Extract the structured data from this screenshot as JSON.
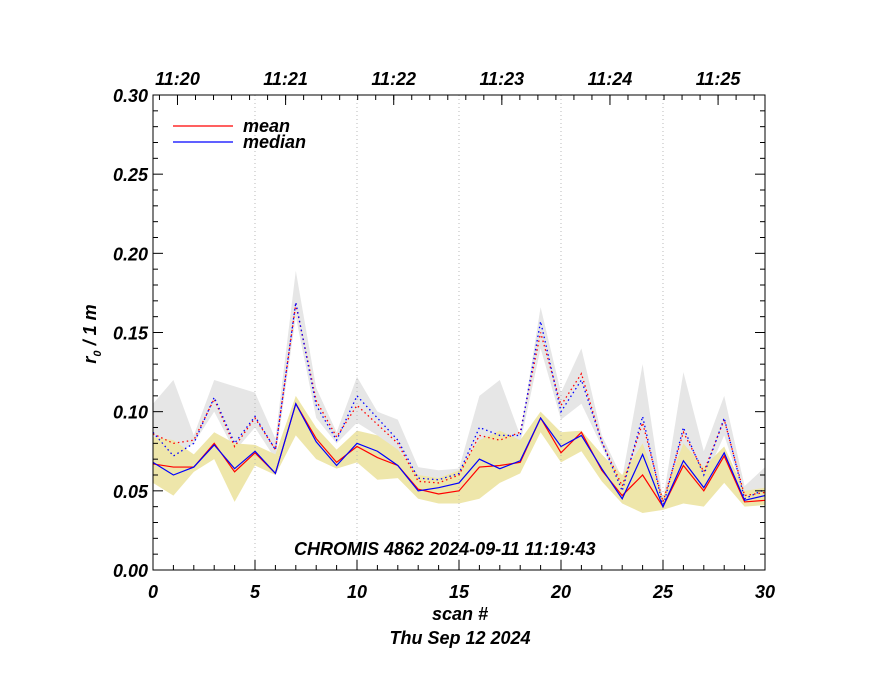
{
  "chart_data": {
    "type": "line",
    "xlabel": "scan #",
    "date_label": "Thu Sep 12 2024",
    "ylabel_main": "r",
    "ylabel_sub": "0",
    "ylabel_rest": " / 1 m",
    "annotation": "CHROMIS 4862 2024-09-11 11:19:43",
    "xlim": [
      0,
      30
    ],
    "ylim": [
      0,
      0.3
    ],
    "x_ticks": [
      "0",
      "5",
      "10",
      "15",
      "20",
      "25",
      "30"
    ],
    "y_ticks": [
      "0.00",
      "0.05",
      "0.10",
      "0.15",
      "0.20",
      "0.25",
      "0.30"
    ],
    "time_ticks": [
      {
        "x": 1.2,
        "label": "11:20"
      },
      {
        "x": 6.5,
        "label": "11:21"
      },
      {
        "x": 11.8,
        "label": "11:22"
      },
      {
        "x": 17.1,
        "label": "11:23"
      },
      {
        "x": 22.4,
        "label": "11:24"
      },
      {
        "x": 27.7,
        "label": "11:25"
      }
    ],
    "vertical_gridlines_x": [
      5,
      10,
      15,
      20,
      25
    ],
    "legend_position": "top-left",
    "x": [
      0,
      1,
      2,
      3,
      4,
      5,
      6,
      7,
      8,
      9,
      10,
      11,
      12,
      13,
      14,
      15,
      16,
      17,
      18,
      19,
      20,
      21,
      22,
      23,
      24,
      25,
      26,
      27,
      28,
      29,
      30
    ],
    "series": [
      {
        "name": "mean",
        "color": "#ff0000",
        "style": "solid",
        "values": [
          0.067,
          0.065,
          0.065,
          0.08,
          0.062,
          0.074,
          0.061,
          0.105,
          0.083,
          0.068,
          0.078,
          0.071,
          0.066,
          0.051,
          0.048,
          0.05,
          0.065,
          0.066,
          0.068,
          0.096,
          0.074,
          0.087,
          0.063,
          0.047,
          0.06,
          0.04,
          0.066,
          0.05,
          0.072,
          0.043,
          0.044
        ]
      },
      {
        "name": "median",
        "color": "#0000ff",
        "style": "solid",
        "values": [
          0.068,
          0.06,
          0.065,
          0.079,
          0.064,
          0.075,
          0.061,
          0.105,
          0.081,
          0.066,
          0.08,
          0.075,
          0.066,
          0.05,
          0.052,
          0.055,
          0.07,
          0.064,
          0.069,
          0.096,
          0.078,
          0.085,
          0.064,
          0.045,
          0.073,
          0.04,
          0.069,
          0.052,
          0.074,
          0.044,
          0.047
        ]
      },
      {
        "name": "",
        "color": "#ff0000",
        "style": "dotted",
        "values": [
          0.086,
          0.08,
          0.082,
          0.108,
          0.078,
          0.096,
          0.076,
          0.168,
          0.107,
          0.084,
          0.104,
          0.092,
          0.08,
          0.056,
          0.055,
          0.06,
          0.085,
          0.082,
          0.087,
          0.15,
          0.104,
          0.124,
          0.081,
          0.053,
          0.093,
          0.043,
          0.087,
          0.062,
          0.095,
          0.047,
          0.049
        ]
      },
      {
        "name": "",
        "color": "#0000ff",
        "style": "dotted",
        "values": [
          0.087,
          0.072,
          0.08,
          0.109,
          0.08,
          0.097,
          0.076,
          0.169,
          0.104,
          0.082,
          0.11,
          0.096,
          0.082,
          0.058,
          0.057,
          0.061,
          0.09,
          0.085,
          0.085,
          0.157,
          0.1,
          0.12,
          0.081,
          0.05,
          0.097,
          0.04,
          0.09,
          0.06,
          0.096,
          0.045,
          0.051
        ]
      }
    ],
    "bands": [
      {
        "color": "#e6e6e6",
        "lower": [
          0.085,
          0.072,
          0.08,
          0.1,
          0.075,
          0.09,
          0.07,
          0.16,
          0.096,
          0.08,
          0.093,
          0.085,
          0.075,
          0.055,
          0.053,
          0.055,
          0.078,
          0.074,
          0.08,
          0.14,
          0.095,
          0.105,
          0.078,
          0.05,
          0.078,
          0.04,
          0.078,
          0.056,
          0.085,
          0.046,
          0.048
        ],
        "upper": [
          0.105,
          0.12,
          0.085,
          0.12,
          0.116,
          0.112,
          0.083,
          0.189,
          0.115,
          0.087,
          0.122,
          0.1,
          0.095,
          0.065,
          0.063,
          0.064,
          0.11,
          0.12,
          0.085,
          0.166,
          0.112,
          0.14,
          0.085,
          0.058,
          0.13,
          0.044,
          0.125,
          0.075,
          0.11,
          0.053,
          0.065
        ]
      },
      {
        "color": "#eee6aa",
        "lower": [
          0.055,
          0.047,
          0.062,
          0.07,
          0.043,
          0.066,
          0.06,
          0.085,
          0.07,
          0.064,
          0.068,
          0.057,
          0.058,
          0.045,
          0.042,
          0.042,
          0.045,
          0.055,
          0.061,
          0.087,
          0.068,
          0.075,
          0.056,
          0.042,
          0.036,
          0.038,
          0.042,
          0.04,
          0.055,
          0.04,
          0.041
        ],
        "upper": [
          0.084,
          0.082,
          0.073,
          0.087,
          0.08,
          0.079,
          0.073,
          0.11,
          0.09,
          0.076,
          0.088,
          0.085,
          0.076,
          0.06,
          0.058,
          0.063,
          0.082,
          0.088,
          0.082,
          0.1,
          0.087,
          0.088,
          0.073,
          0.06,
          0.08,
          0.046,
          0.08,
          0.065,
          0.078,
          0.05,
          0.052
        ]
      }
    ]
  }
}
